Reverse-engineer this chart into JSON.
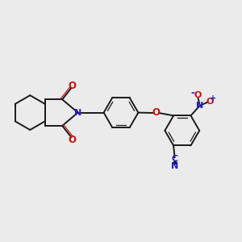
{
  "background_color": "#ebebeb",
  "bond_color": "#1a1a1a",
  "N_color": "#2020cc",
  "O_color": "#cc1010",
  "C_color": "#2020aa",
  "figsize": [
    3.0,
    3.0
  ],
  "dpi": 100,
  "lw": 1.4,
  "lw_thin": 0.9,
  "xlim": [
    0,
    10
  ],
  "ylim": [
    0,
    10
  ]
}
